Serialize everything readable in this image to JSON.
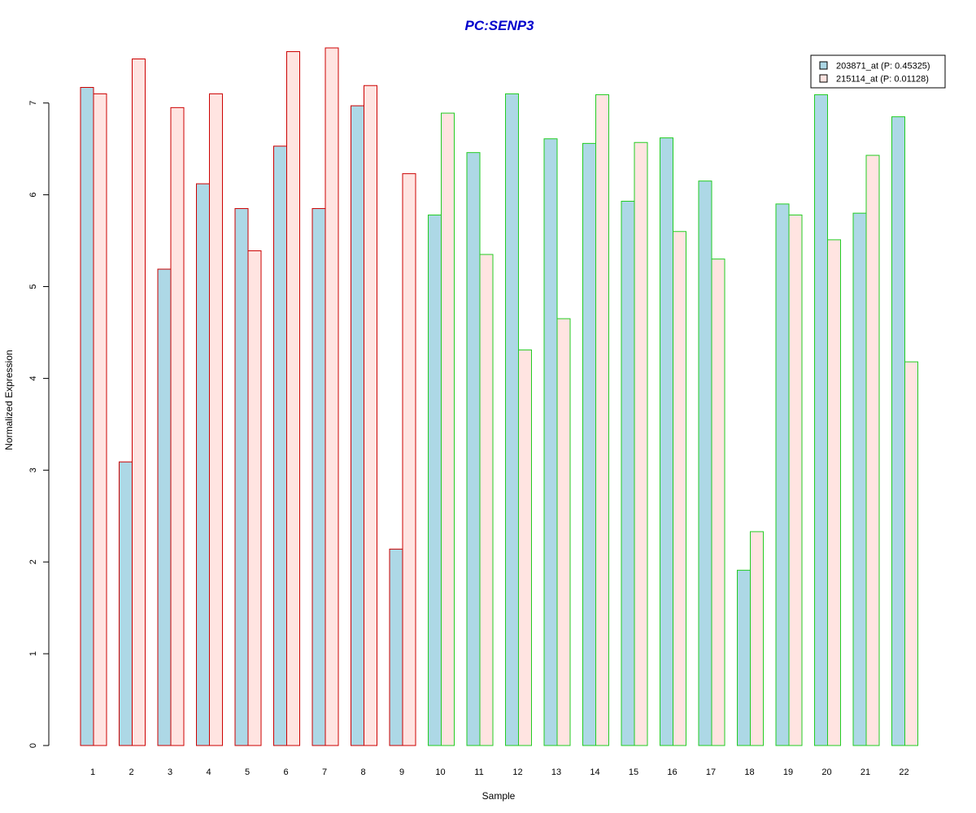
{
  "chart_data": {
    "type": "bar",
    "title": "PC:SENP3",
    "xlabel": "Sample",
    "ylabel": "Normalized Expression",
    "ylim": [
      0,
      7.6
    ],
    "yticks": [
      0,
      1,
      2,
      3,
      4,
      5,
      6,
      7
    ],
    "categories": [
      "1",
      "2",
      "3",
      "4",
      "5",
      "6",
      "7",
      "8",
      "9",
      "10",
      "11",
      "12",
      "13",
      "14",
      "15",
      "16",
      "17",
      "18",
      "19",
      "20",
      "21",
      "22"
    ],
    "series": [
      {
        "name": "203871_at (P: 0.45325)",
        "fill": "#add8e6",
        "values": [
          7.17,
          3.09,
          5.19,
          6.12,
          5.85,
          6.53,
          5.85,
          6.97,
          2.14,
          5.78,
          6.46,
          7.1,
          6.61,
          6.56,
          5.93,
          6.62,
          6.15,
          1.91,
          5.9,
          7.09,
          5.8,
          6.85
        ]
      },
      {
        "name": "215114_at (P: 0.01128)",
        "fill": "#ffe4e1",
        "values": [
          7.1,
          7.48,
          6.95,
          7.1,
          5.39,
          7.56,
          7.6,
          7.19,
          6.23,
          6.89,
          5.35,
          4.31,
          4.65,
          7.09,
          6.57,
          5.6,
          5.3,
          2.33,
          5.78,
          5.51,
          6.43,
          4.18
        ]
      }
    ],
    "group_border_colors": [
      "#cc0000",
      "#cc0000",
      "#cc0000",
      "#cc0000",
      "#cc0000",
      "#cc0000",
      "#cc0000",
      "#cc0000",
      "#cc0000",
      "#22cc22",
      "#22cc22",
      "#22cc22",
      "#22cc22",
      "#22cc22",
      "#22cc22",
      "#22cc22",
      "#22cc22",
      "#22cc22",
      "#22cc22",
      "#22cc22",
      "#22cc22",
      "#22cc22"
    ],
    "title_color": "#0000cc",
    "legend_position": "top-right",
    "grid": false
  }
}
